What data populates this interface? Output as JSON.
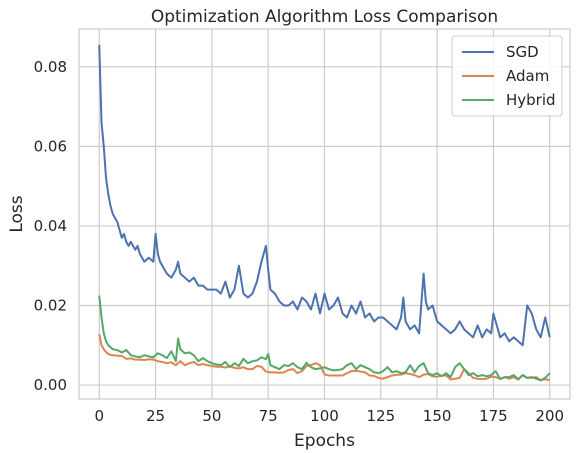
{
  "chart_data": {
    "type": "line",
    "title": "Optimization Algorithm Loss Comparison",
    "xlabel": "Epochs",
    "ylabel": "Loss",
    "xlim": [
      -9,
      209
    ],
    "ylim": [
      -0.0035,
      0.0895
    ],
    "xticks": [
      0,
      25,
      50,
      75,
      100,
      125,
      150,
      175,
      200
    ],
    "yticks": [
      0.0,
      0.02,
      0.04,
      0.06,
      0.08
    ],
    "ytick_labels": [
      "0.00",
      "0.02",
      "0.04",
      "0.06",
      "0.08"
    ],
    "grid": true,
    "legend_position": "top-right",
    "series": [
      {
        "name": "SGD",
        "color": "#4c72b0",
        "x": [
          0,
          1,
          2,
          3,
          4,
          5,
          6,
          7,
          8,
          9,
          10,
          11,
          12,
          13,
          14,
          15,
          16,
          17,
          18,
          19,
          20,
          22,
          24,
          25,
          26,
          27,
          28,
          30,
          32,
          34,
          35,
          36,
          38,
          40,
          42,
          44,
          46,
          48,
          50,
          52,
          54,
          56,
          58,
          60,
          62,
          64,
          66,
          68,
          70,
          72,
          74,
          75,
          76,
          78,
          80,
          82,
          84,
          86,
          88,
          90,
          92,
          94,
          96,
          98,
          100,
          102,
          104,
          106,
          108,
          110,
          112,
          114,
          116,
          118,
          120,
          122,
          124,
          126,
          128,
          130,
          132,
          134,
          135,
          136,
          138,
          140,
          142,
          144,
          145,
          146,
          148,
          150,
          152,
          154,
          156,
          158,
          160,
          162,
          164,
          166,
          168,
          170,
          172,
          174,
          175,
          176,
          178,
          180,
          182,
          184,
          186,
          188,
          190,
          192,
          194,
          196,
          198,
          200
        ],
        "values": [
          0.0855,
          0.066,
          0.06,
          0.052,
          0.048,
          0.045,
          0.043,
          0.042,
          0.041,
          0.039,
          0.037,
          0.038,
          0.036,
          0.035,
          0.036,
          0.035,
          0.034,
          0.035,
          0.033,
          0.032,
          0.031,
          0.032,
          0.031,
          0.038,
          0.033,
          0.031,
          0.03,
          0.028,
          0.027,
          0.029,
          0.031,
          0.028,
          0.027,
          0.026,
          0.027,
          0.025,
          0.025,
          0.024,
          0.024,
          0.024,
          0.023,
          0.026,
          0.022,
          0.024,
          0.03,
          0.023,
          0.022,
          0.023,
          0.026,
          0.031,
          0.035,
          0.029,
          0.024,
          0.023,
          0.021,
          0.02,
          0.02,
          0.021,
          0.019,
          0.022,
          0.021,
          0.019,
          0.023,
          0.018,
          0.023,
          0.019,
          0.02,
          0.022,
          0.018,
          0.017,
          0.02,
          0.018,
          0.021,
          0.017,
          0.018,
          0.016,
          0.017,
          0.017,
          0.016,
          0.015,
          0.014,
          0.017,
          0.022,
          0.016,
          0.014,
          0.015,
          0.013,
          0.028,
          0.021,
          0.019,
          0.02,
          0.016,
          0.015,
          0.014,
          0.013,
          0.014,
          0.016,
          0.014,
          0.013,
          0.012,
          0.015,
          0.012,
          0.014,
          0.013,
          0.018,
          0.016,
          0.012,
          0.013,
          0.011,
          0.012,
          0.011,
          0.01,
          0.02,
          0.018,
          0.014,
          0.012,
          0.017,
          0.012
        ]
      },
      {
        "name": "Adam",
        "color": "#dd8452",
        "x": [
          0,
          1,
          2,
          3,
          4,
          5,
          6,
          8,
          10,
          12,
          14,
          16,
          18,
          20,
          22,
          24,
          26,
          28,
          30,
          32,
          34,
          36,
          38,
          40,
          42,
          44,
          46,
          48,
          50,
          52,
          54,
          56,
          58,
          60,
          62,
          64,
          66,
          68,
          70,
          72,
          74,
          76,
          78,
          80,
          82,
          84,
          86,
          88,
          90,
          92,
          94,
          96,
          98,
          100,
          102,
          104,
          106,
          108,
          110,
          112,
          114,
          116,
          118,
          120,
          122,
          124,
          126,
          128,
          130,
          132,
          134,
          136,
          138,
          140,
          142,
          144,
          146,
          148,
          150,
          152,
          154,
          156,
          158,
          160,
          162,
          164,
          166,
          168,
          170,
          172,
          174,
          176,
          178,
          180,
          182,
          184,
          186,
          188,
          190,
          192,
          194,
          196,
          198,
          200
        ],
        "values": [
          0.0128,
          0.01,
          0.009,
          0.0083,
          0.0078,
          0.0076,
          0.0075,
          0.0074,
          0.0073,
          0.0066,
          0.0067,
          0.0064,
          0.0064,
          0.0063,
          0.0065,
          0.0064,
          0.006,
          0.0058,
          0.0055,
          0.0057,
          0.005,
          0.006,
          0.005,
          0.0055,
          0.0058,
          0.005,
          0.0053,
          0.005,
          0.0048,
          0.0046,
          0.0046,
          0.0044,
          0.0048,
          0.0043,
          0.0042,
          0.0045,
          0.004,
          0.004,
          0.0048,
          0.0046,
          0.0034,
          0.0032,
          0.0032,
          0.0031,
          0.0032,
          0.0038,
          0.004,
          0.003,
          0.0035,
          0.0048,
          0.005,
          0.0055,
          0.005,
          0.0027,
          0.0024,
          0.0024,
          0.0024,
          0.0024,
          0.003,
          0.0035,
          0.0036,
          0.0034,
          0.0032,
          0.0024,
          0.0023,
          0.0018,
          0.0016,
          0.002,
          0.0024,
          0.0026,
          0.0026,
          0.003,
          0.0028,
          0.0025,
          0.002,
          0.0026,
          0.0028,
          0.0022,
          0.0021,
          0.0024,
          0.0024,
          0.0014,
          0.0016,
          0.0018,
          0.004,
          0.003,
          0.0018,
          0.0016,
          0.0015,
          0.0016,
          0.0021,
          0.002,
          0.0016,
          0.002,
          0.0016,
          0.002,
          0.0014,
          0.0025,
          0.0018,
          0.0018,
          0.002,
          0.0012,
          0.0015,
          0.0012
        ]
      },
      {
        "name": "Hybrid",
        "color": "#55a868",
        "x": [
          0,
          1,
          2,
          3,
          4,
          5,
          6,
          8,
          10,
          12,
          14,
          16,
          18,
          20,
          22,
          24,
          26,
          28,
          30,
          32,
          34,
          35,
          36,
          38,
          40,
          42,
          44,
          46,
          48,
          50,
          52,
          54,
          56,
          58,
          60,
          62,
          64,
          66,
          68,
          70,
          72,
          74,
          75,
          76,
          78,
          80,
          82,
          84,
          86,
          88,
          90,
          92,
          94,
          96,
          98,
          100,
          102,
          104,
          106,
          108,
          110,
          112,
          114,
          116,
          118,
          120,
          122,
          124,
          126,
          128,
          130,
          132,
          134,
          136,
          138,
          140,
          142,
          144,
          146,
          148,
          150,
          152,
          154,
          156,
          158,
          160,
          162,
          164,
          166,
          168,
          170,
          172,
          174,
          176,
          178,
          180,
          182,
          184,
          186,
          188,
          190,
          192,
          194,
          196,
          198,
          200
        ],
        "values": [
          0.0225,
          0.017,
          0.013,
          0.011,
          0.01,
          0.0095,
          0.009,
          0.0088,
          0.0082,
          0.0088,
          0.0075,
          0.0072,
          0.007,
          0.0075,
          0.0072,
          0.007,
          0.008,
          0.0075,
          0.0068,
          0.0085,
          0.006,
          0.0117,
          0.009,
          0.008,
          0.0082,
          0.0075,
          0.006,
          0.0068,
          0.006,
          0.0055,
          0.0052,
          0.005,
          0.0058,
          0.0045,
          0.0055,
          0.0048,
          0.0066,
          0.0055,
          0.006,
          0.0062,
          0.007,
          0.0065,
          0.0078,
          0.005,
          0.0045,
          0.004,
          0.005,
          0.0048,
          0.0055,
          0.0045,
          0.004,
          0.0056,
          0.0045,
          0.004,
          0.0042,
          0.0045,
          0.004,
          0.0037,
          0.0038,
          0.004,
          0.005,
          0.0055,
          0.004,
          0.005,
          0.0045,
          0.004,
          0.0032,
          0.003,
          0.0035,
          0.0045,
          0.0032,
          0.0035,
          0.003,
          0.0032,
          0.005,
          0.0032,
          0.0048,
          0.0055,
          0.003,
          0.0025,
          0.003,
          0.0022,
          0.003,
          0.002,
          0.0045,
          0.0055,
          0.004,
          0.0025,
          0.003,
          0.0022,
          0.0025,
          0.0022,
          0.0025,
          0.0035,
          0.0015,
          0.002,
          0.002,
          0.0025,
          0.0015,
          0.0025,
          0.0018,
          0.002,
          0.0016,
          0.0012,
          0.0018,
          0.003
        ]
      }
    ]
  }
}
